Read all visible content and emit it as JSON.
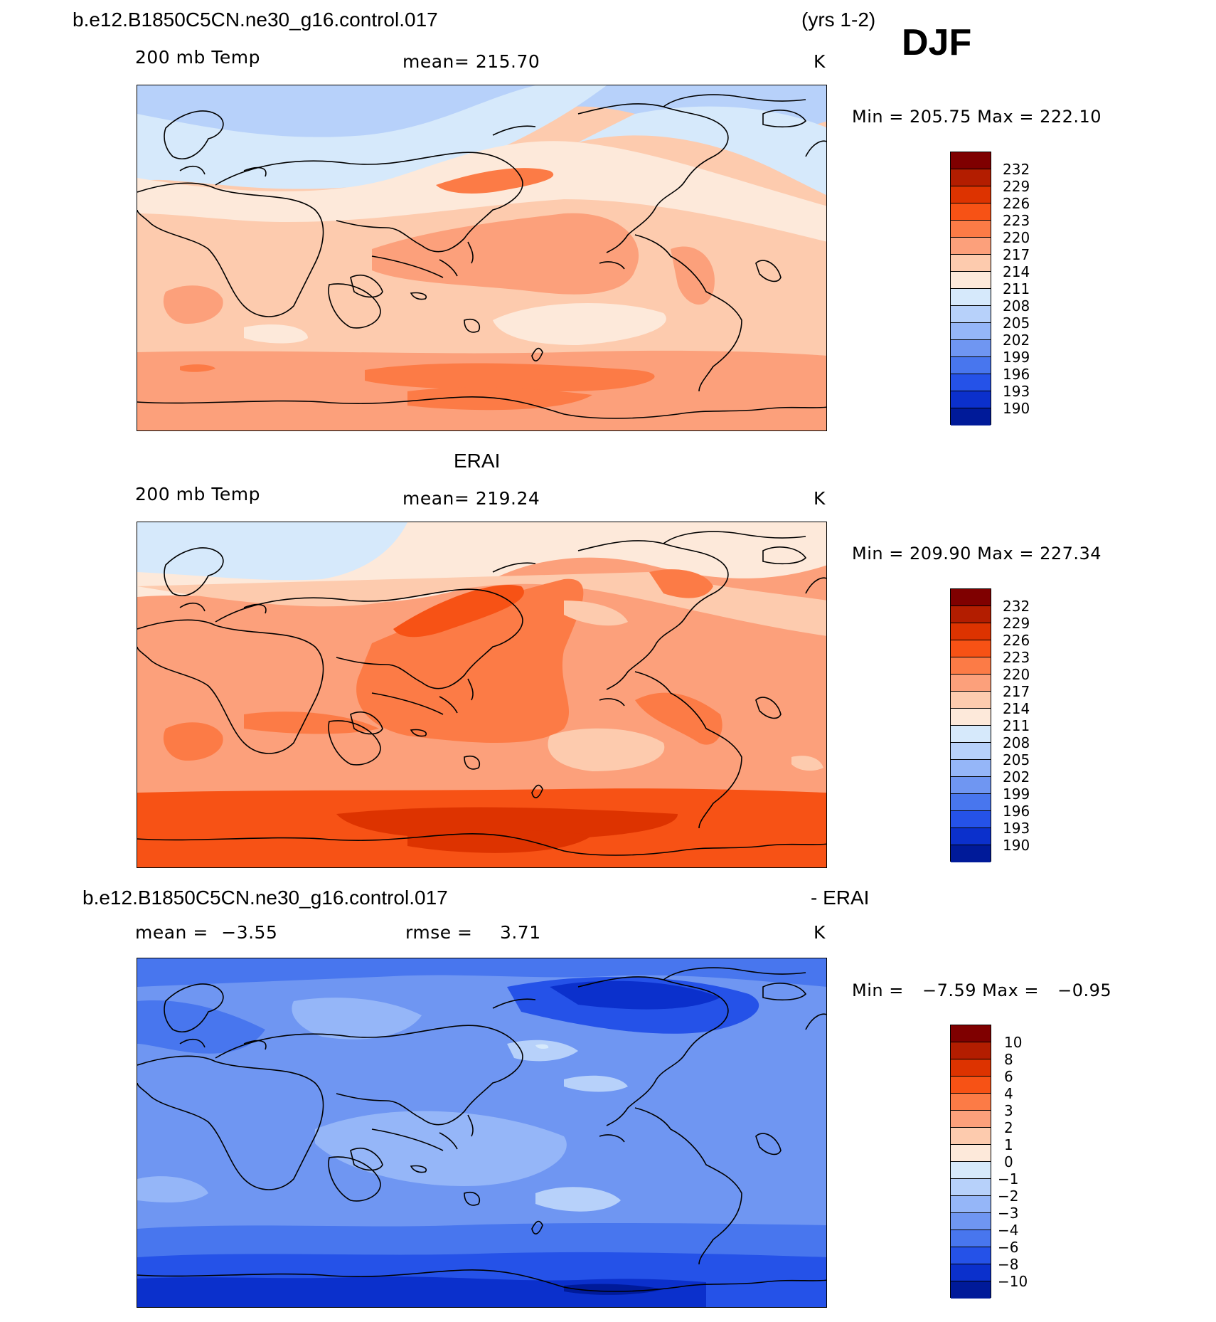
{
  "case_title": "b.e12.B1850C5CN.ne30_g16.control.017",
  "years": "(yrs 1-2)",
  "season": "DJF",
  "panels": [
    {
      "name": "model",
      "var_label": "200 mb Temp",
      "stat_label": "mean=",
      "stat_value": "215.70",
      "units": "K",
      "min_label": "Min =",
      "min_value": "205.75",
      "max_label": "Max =",
      "max_value": "222.10",
      "levels": [
        "232",
        "229",
        "226",
        "223",
        "220",
        "217",
        "214",
        "211",
        "208",
        "205",
        "202",
        "199",
        "196",
        "193",
        "190"
      ]
    },
    {
      "name": "obs",
      "title": "ERAI",
      "var_label": "200 mb Temp",
      "stat_label": "mean=",
      "stat_value": "219.24",
      "units": "K",
      "min_label": "Min =",
      "min_value": "209.90",
      "max_label": "Max =",
      "max_value": "227.34",
      "levels": [
        "232",
        "229",
        "226",
        "223",
        "220",
        "217",
        "214",
        "211",
        "208",
        "205",
        "202",
        "199",
        "196",
        "193",
        "190"
      ]
    },
    {
      "name": "diff",
      "title_left": "b.e12.B1850C5CN.ne30_g16.control.017",
      "title_right": "- ERAI",
      "mean_label": "mean =",
      "mean_value": "−3.55",
      "rmse_label": "rmse =",
      "rmse_value": "3.71",
      "units": "K",
      "min_label": "Min =",
      "min_value": "−7.59",
      "max_label": "Max =",
      "max_value": "−0.95",
      "levels": [
        "10",
        "8",
        "6",
        "4",
        "3",
        "2",
        "1",
        "0",
        "−1",
        "−2",
        "−3",
        "−4",
        "−6",
        "−8",
        "−10"
      ]
    }
  ],
  "colors": {
    "warm": [
      "#7f0000",
      "#b31d00",
      "#dd3300",
      "#f75215",
      "#fc7b46",
      "#fca07b",
      "#fdcbae",
      "#fde9da",
      "#d6e9fb",
      "#b7d1fa",
      "#95b6f8",
      "#6f96f2",
      "#4876ee",
      "#2552e8",
      "#0b30cc",
      "#001a99",
      "#000d73"
    ],
    "scale": [
      "#7f0000",
      "#b31d00",
      "#dd3300",
      "#f75215",
      "#fc7b46",
      "#fca07b",
      "#fdcbae",
      "#fde9da",
      "#d6e9fb",
      "#b7d1fa",
      "#95b6f8",
      "#6f96f2",
      "#4876ee",
      "#2552e8",
      "#0b30cc",
      "#001a99"
    ]
  }
}
